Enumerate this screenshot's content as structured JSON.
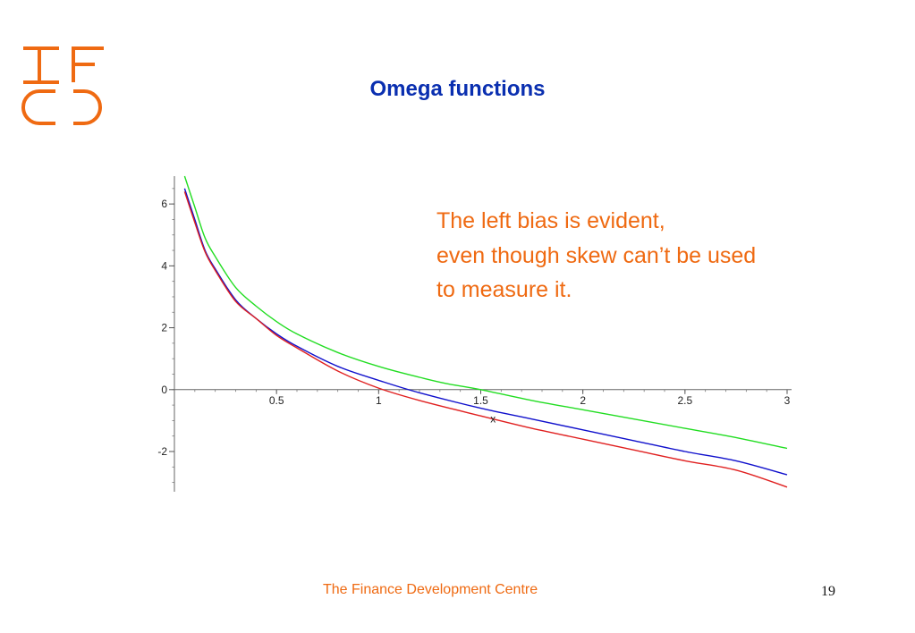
{
  "slide": {
    "title": "Omega functions",
    "note_lines": [
      "The left bias is evident,",
      "even though skew can’t be used",
      "to measure it."
    ],
    "footer": "The Finance Development Centre",
    "page_number": "19",
    "colors": {
      "title": "#0a2fb0",
      "accent": "#ef6a12"
    },
    "logo_letters": "TFDC"
  },
  "chart_data": {
    "type": "line",
    "title": "",
    "xlabel": "",
    "ylabel": "",
    "xlim": [
      0.0,
      3.0
    ],
    "ylim": [
      -3.3,
      6.9
    ],
    "grid": false,
    "x_ticks": [
      0.5,
      1,
      1.5,
      2,
      2.5,
      3
    ],
    "x_tick_labels": [
      "0.5",
      "1",
      "1.5",
      "2",
      "2.5",
      "3"
    ],
    "y_ticks": [
      -2,
      0,
      2,
      4,
      6
    ],
    "y_tick_labels": [
      "-2",
      "0",
      "2",
      "4",
      "6"
    ],
    "series": [
      {
        "color": "#22dd22",
        "x": [
          0.05,
          0.1,
          0.15,
          0.2,
          0.3,
          0.4,
          0.5,
          0.6,
          0.8,
          1.0,
          1.2,
          1.33,
          1.5,
          1.75,
          2.0,
          2.25,
          2.5,
          2.75,
          3.0
        ],
        "y": [
          6.9,
          5.9,
          4.9,
          4.3,
          3.3,
          2.7,
          2.2,
          1.8,
          1.2,
          0.75,
          0.4,
          0.2,
          0.0,
          -0.35,
          -0.65,
          -0.95,
          -1.25,
          -1.55,
          -1.9
        ]
      },
      {
        "color": "#1010cc",
        "x": [
          0.05,
          0.1,
          0.15,
          0.2,
          0.3,
          0.4,
          0.5,
          0.6,
          0.8,
          1.0,
          1.2,
          1.5,
          1.75,
          2.0,
          2.25,
          2.5,
          2.75,
          3.0
        ],
        "y": [
          6.5,
          5.5,
          4.5,
          3.9,
          2.9,
          2.3,
          1.8,
          1.4,
          0.75,
          0.3,
          -0.1,
          -0.6,
          -0.95,
          -1.3,
          -1.65,
          -2.0,
          -2.3,
          -2.75
        ]
      },
      {
        "color": "#e02020",
        "x": [
          0.05,
          0.1,
          0.15,
          0.2,
          0.3,
          0.4,
          0.5,
          0.6,
          0.8,
          1.0,
          1.2,
          1.5,
          1.75,
          2.0,
          2.25,
          2.5,
          2.75,
          3.0
        ],
        "y": [
          6.4,
          5.4,
          4.45,
          3.85,
          2.85,
          2.3,
          1.75,
          1.35,
          0.6,
          0.05,
          -0.35,
          -0.85,
          -1.25,
          -1.6,
          -1.95,
          -2.3,
          -2.6,
          -3.15
        ]
      }
    ],
    "markers": [
      {
        "x": 1.56,
        "y": -0.95,
        "symbol": "x",
        "color": "#333333"
      }
    ]
  }
}
